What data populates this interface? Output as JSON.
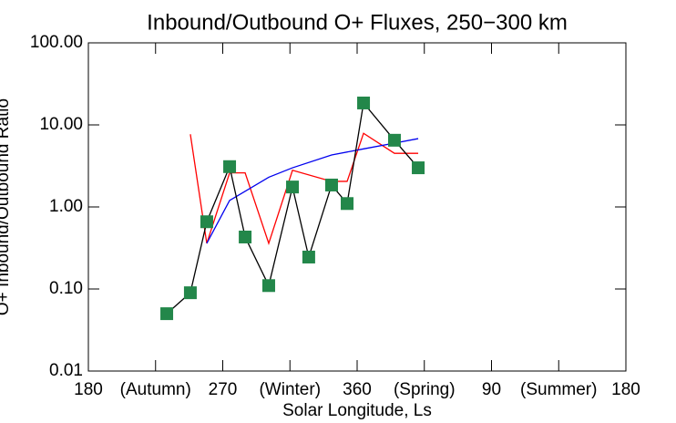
{
  "chart_data": {
    "type": "line",
    "title": "Inbound/Outbound O+ Fluxes, 250−300 km",
    "xlabel": "Solar Longitude, Ls",
    "ylabel": "O+ Inbound/Outbound Ratio",
    "xlim": [
      180,
      540
    ],
    "xticks": [
      180,
      {
        "value": 225,
        "label": "(Autumn)"
      },
      270,
      {
        "value": 315,
        "label": "(Winter)"
      },
      360,
      {
        "value": 405,
        "label": "(Spring)"
      },
      {
        "value": 450,
        "label": "90"
      },
      {
        "value": 495,
        "label": "(Summer)"
      },
      {
        "value": 540,
        "label": "180"
      }
    ],
    "ylim": [
      0.01,
      100
    ],
    "yscale": "log",
    "yticks": [
      {
        "value": 100,
        "label": "100.00"
      },
      {
        "value": 10,
        "label": "10.00"
      },
      {
        "value": 1,
        "label": "1.00"
      },
      {
        "value": 0.1,
        "label": "0.10"
      },
      {
        "value": 0.01,
        "label": "0.01"
      }
    ],
    "series": [
      {
        "color": "#ff0000",
        "x": [
          248.3,
          259.3,
          274.6,
          285,
          300.8,
          316.7,
          342.9,
          353.3,
          364.3,
          385,
          400.9
        ],
        "values": [
          7.7,
          0.36,
          2.6,
          2.6,
          0.36,
          2.8,
          2.05,
          2.05,
          7.9,
          4.5,
          4.5
        ]
      },
      {
        "color": "#0000ee",
        "x": [
          259.3,
          274.6,
          300.8,
          316.7,
          342.9,
          364.3,
          385,
          400.9
        ],
        "values": [
          0.36,
          1.2,
          2.3,
          3.0,
          4.3,
          5.1,
          6.0,
          6.8
        ]
      },
      {
        "color": "#000000",
        "marker_color": "#23874a",
        "x": [
          232.5,
          248.3,
          259.3,
          274.6,
          285,
          300.8,
          316.7,
          327.6,
          342.9,
          353.3,
          364.3,
          385,
          400.9
        ],
        "values": [
          0.05,
          0.09,
          0.66,
          3.1,
          0.43,
          0.11,
          1.75,
          0.245,
          1.85,
          1.1,
          18.5,
          6.5,
          3.0
        ]
      }
    ]
  }
}
